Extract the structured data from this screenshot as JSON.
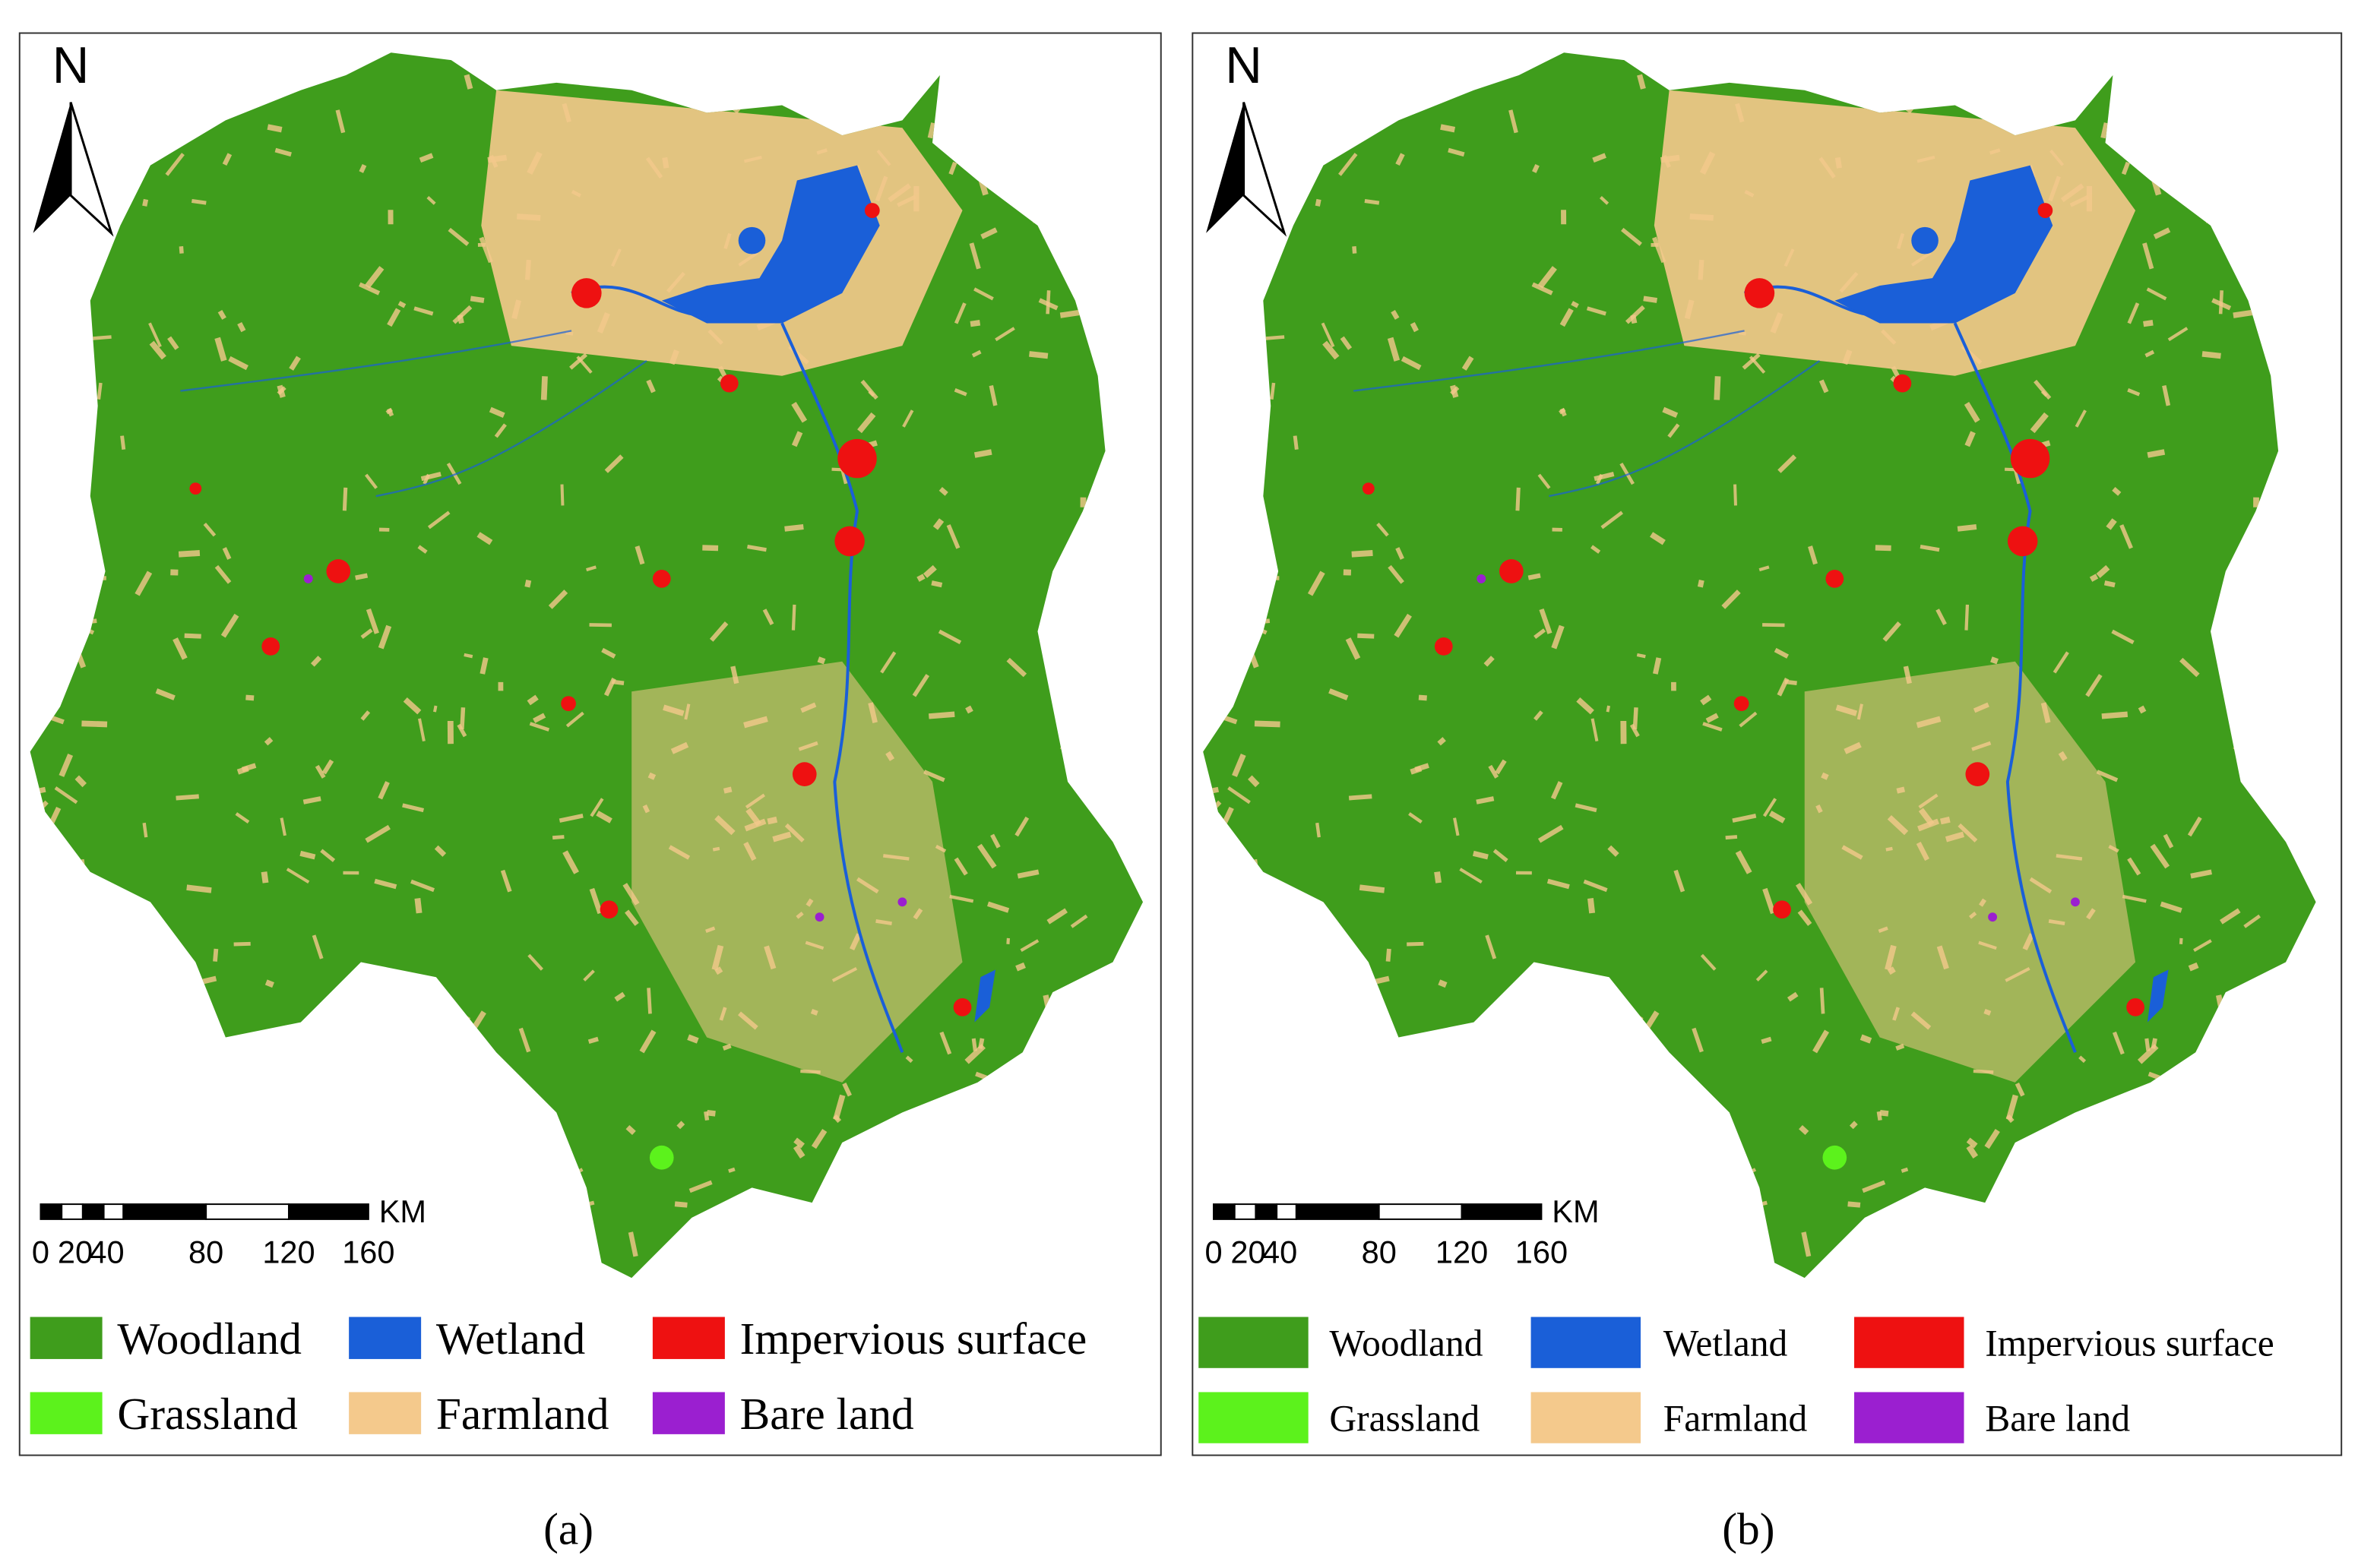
{
  "panels": [
    {
      "north": "N",
      "scale": {
        "labels": [
          "0",
          "20",
          "40",
          "80",
          "120",
          "160"
        ],
        "unit": "KM"
      },
      "legend": [
        {
          "label": "Woodland",
          "color": "#3f9d1c"
        },
        {
          "label": "Wetland",
          "color": "#1a5fd8"
        },
        {
          "label": "Impervious surface",
          "color": "#ee1111"
        },
        {
          "label": "Grassland",
          "color": "#5cf21c"
        },
        {
          "label": "Farmland",
          "color": "#f4c98c"
        },
        {
          "label": "Bare land",
          "color": "#9b1fd0"
        }
      ],
      "caption": "(a)"
    },
    {
      "north": "N",
      "scale": {
        "labels": [
          "0",
          "20",
          "40",
          "80",
          "120",
          "160"
        ],
        "unit": "KM"
      },
      "legend": [
        {
          "label": "Woodland",
          "color": "#3f9d1c"
        },
        {
          "label": "Wetland",
          "color": "#1a5fd8"
        },
        {
          "label": "Impervious surface",
          "color": "#ee1111"
        },
        {
          "label": "Grassland",
          "color": "#5cf21c"
        },
        {
          "label": "Farmland",
          "color": "#f4c98c"
        },
        {
          "label": "Bare land",
          "color": "#9b1fd0"
        }
      ],
      "caption": "(b)"
    }
  ]
}
